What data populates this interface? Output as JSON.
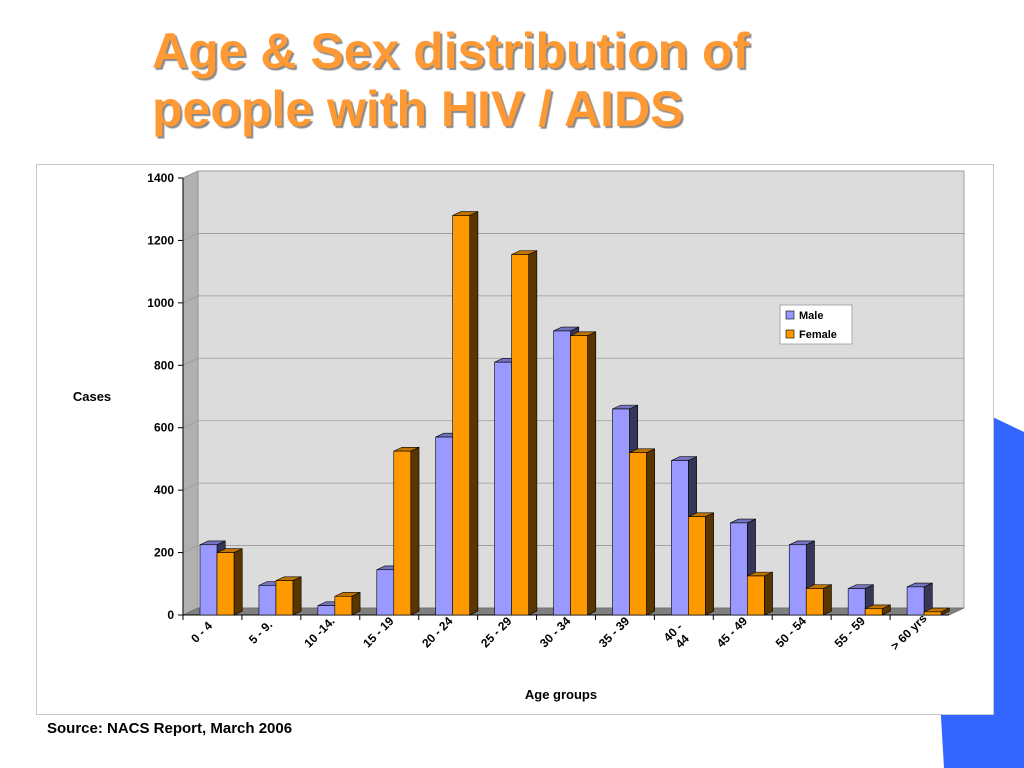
{
  "slide": {
    "title_line1": "Age & Sex distribution of",
    "title_line2": "people with HIV / AIDS",
    "source": "Source: NACS Report, March 2006",
    "accent_color": "#ff9933",
    "decoration_color": "#3366ff"
  },
  "chart_data": {
    "type": "bar",
    "style": "3d-clustered-column",
    "title": "",
    "xlabel": "Age groups",
    "ylabel": "Cases",
    "ylim": [
      0,
      1400
    ],
    "yticks": [
      0,
      200,
      400,
      600,
      800,
      1000,
      1200,
      1400
    ],
    "grid": true,
    "legend_position": "right",
    "categories": [
      "0 - 4",
      "5 - 9.",
      "10 -14.",
      "15 - 19",
      "20 - 24",
      "25 - 29",
      "30 - 34",
      "35 - 39",
      "40 - 44",
      "45 - 49",
      "50 - 54",
      "55 - 59",
      "> 60 yrs"
    ],
    "category_lines": [
      [
        "0 - 4"
      ],
      [
        "5 - 9."
      ],
      [
        "10 -14."
      ],
      [
        "15 - 19"
      ],
      [
        "20 - 24"
      ],
      [
        "25 - 29"
      ],
      [
        "30 - 34"
      ],
      [
        "35 - 39"
      ],
      [
        "40 -",
        "44"
      ],
      [
        "45 - 49"
      ],
      [
        "50 - 54"
      ],
      [
        "55 - 59"
      ],
      [
        "> 60 yrs"
      ]
    ],
    "series": [
      {
        "name": "Male",
        "color": "#9999ff",
        "values": [
          225,
          95,
          30,
          145,
          570,
          810,
          910,
          660,
          495,
          295,
          225,
          85,
          90
        ]
      },
      {
        "name": "Female",
        "color": "#ff9900",
        "values": [
          200,
          110,
          60,
          525,
          1280,
          1155,
          895,
          520,
          315,
          125,
          85,
          20,
          10
        ]
      }
    ],
    "colors": {
      "wall": "#dcdcdc",
      "side_wall": "#b0b0b0",
      "floor": "#808080",
      "gridline": "#9a9a9a"
    }
  }
}
